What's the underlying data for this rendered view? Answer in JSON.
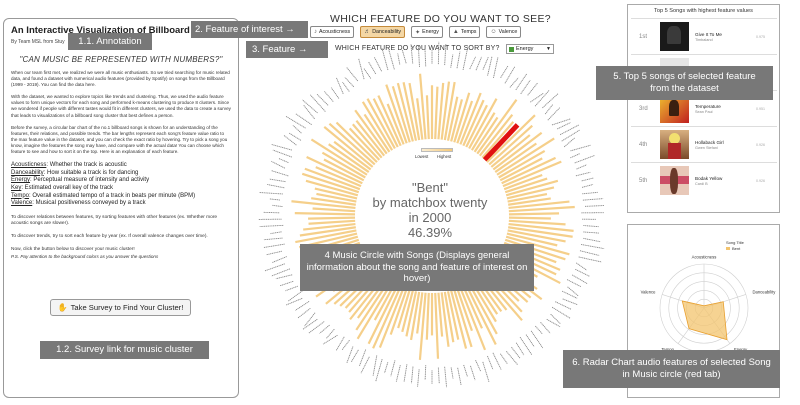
{
  "left_panel": {
    "title": "An Interactive Visualization of Billboard Song Clusters",
    "byline": "By Team MSL from Stuy",
    "quote": "\"CAN MUSIC BE REPRESENTED WITH NUMBERS?\"",
    "para1": "When our team first met, we realized we were all music enthusiasts. So we tried searching for music related data, and found a dataset with numerical audio features (provided by Spotify) on songs from the Billboard (1999 - 2019). You can find the data here.",
    "para2": "With the dataset, we wanted to explore topics like trends and clustering. Thus, we used the audio feature values to form unique vectors for each song and performed k-means clustering to produce 8 clusters. Since we wondered if people with different tastes would fit in different clusters, we used the data to create a survey that leads to visualizations of a billboard song cluster that best defines a person.",
    "para3": "Before the survey, a circular bar chart of the no.1 billboard songs is shown for an understanding of the features, their relations, and possible trends. The bar lengths represent each song's feature value ratio to the max feature value in the dataset, and you can check the exact ratio by hovering. Try to pick a song you know, imagine the features the song may have, and compare with the actual data! You can choose which feature to see and how to sort it on the top. Here is an explanation of each feature.",
    "features": [
      {
        "term": "Acousticness",
        "desc": ": Whether the track is acoustic"
      },
      {
        "term": "Danceability",
        "desc": ": How suitable a track is for dancing"
      },
      {
        "term": "Energy",
        "desc": ": Perceptual measure of intensity and activity"
      },
      {
        "term": "Key",
        "desc": ": Estimated overall key of the track"
      },
      {
        "term": "Tempo",
        "desc": ": Overall estimated tempo of a track in beats per minute (BPM)"
      },
      {
        "term": "Valence",
        "desc": ": Musical positiveness conveyed by a track"
      }
    ],
    "para4": "To discover relations between features, try sorting features with other features (ex. Whether more acoustic songs are slower).",
    "para5": "To discover trends, try to sort each feature by year (ex. If overall valence changes over time).",
    "para6": "Now, click the button below to discover your music cluster!",
    "para7": "P.S. Pay attention to the background colors as you answer the questions",
    "survey_button": "Take Survey to Find Your Cluster!"
  },
  "controls": {
    "question": "WHICH FEATURE DO YOU WANT TO SEE?",
    "features": [
      "Acousticness",
      "Danceability",
      "Energy",
      "Temps",
      "Valence"
    ],
    "active_feature": "Danceability",
    "sort_label": "WHICH FEATURE DO YOU WANT TO SORT BY?",
    "sort_value": "Energy"
  },
  "circle": {
    "legend_low": "Lowest",
    "legend_high": "Highest",
    "center_song": "\"Bent\"",
    "center_artist": "by matchbox twenty",
    "center_year": "in 2000",
    "center_value": "46.39%",
    "colors": {
      "bar": "#f5cf8a",
      "highlight": "#e01010"
    }
  },
  "top5": {
    "title": "Top 5 Songs with highest feature values",
    "rows": [
      {
        "rank": "1st",
        "song": "Give It To Me",
        "artist": "Timbaland",
        "value": "0.975"
      },
      {
        "rank": "2nd",
        "song": "",
        "artist": "",
        "value": ""
      },
      {
        "rank": "3rd",
        "song": "Temperature",
        "artist": "Sean Paul",
        "value": "0.951"
      },
      {
        "rank": "4th",
        "song": "Hollaback Girl",
        "artist": "Gwen Stefani",
        "value": "0.926"
      },
      {
        "rank": "5th",
        "song": "Bodak Yellow",
        "artist": "Cardi B",
        "value": "0.926"
      }
    ]
  },
  "radar": {
    "axes": [
      "Acousticness",
      "Danceability",
      "Energy",
      "Tempo",
      "Valence"
    ],
    "legend_title": "Song Title",
    "legend_item": "Bent",
    "values": [
      0.05,
      0.46,
      0.89,
      0.58,
      0.52
    ],
    "colors": {
      "fill": "#f3c46e",
      "stroke": "#e8a030"
    }
  },
  "annotations": {
    "a1_1": "1.1. Annotation",
    "a1_2": "1.2. Survey link for music cluster",
    "a2": "2. Feature of interest →",
    "a3": "3. Feature →",
    "a4": "4 Music Circle with Songs (Displays general information about the song and feature of interest on hover)",
    "a5": "5. Top 5 songs of selected feature from the dataset",
    "a6": "6. Radar Chart audio features of selected Song in Music circle (red tab)"
  },
  "tag_color": "#787878"
}
